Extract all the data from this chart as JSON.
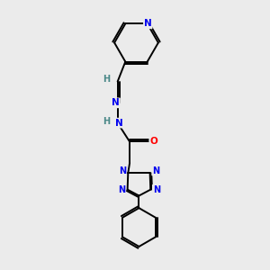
{
  "bg_color": "#ebebeb",
  "bond_color": "#000000",
  "N_color": "#0000ee",
  "O_color": "#ff0000",
  "H_color": "#4a8888",
  "fs": 7.5,
  "lw": 1.4,
  "fig_width": 3.0,
  "fig_height": 3.0,
  "dpi": 100,
  "xlim": [
    0,
    10
  ],
  "ylim": [
    0,
    10
  ]
}
